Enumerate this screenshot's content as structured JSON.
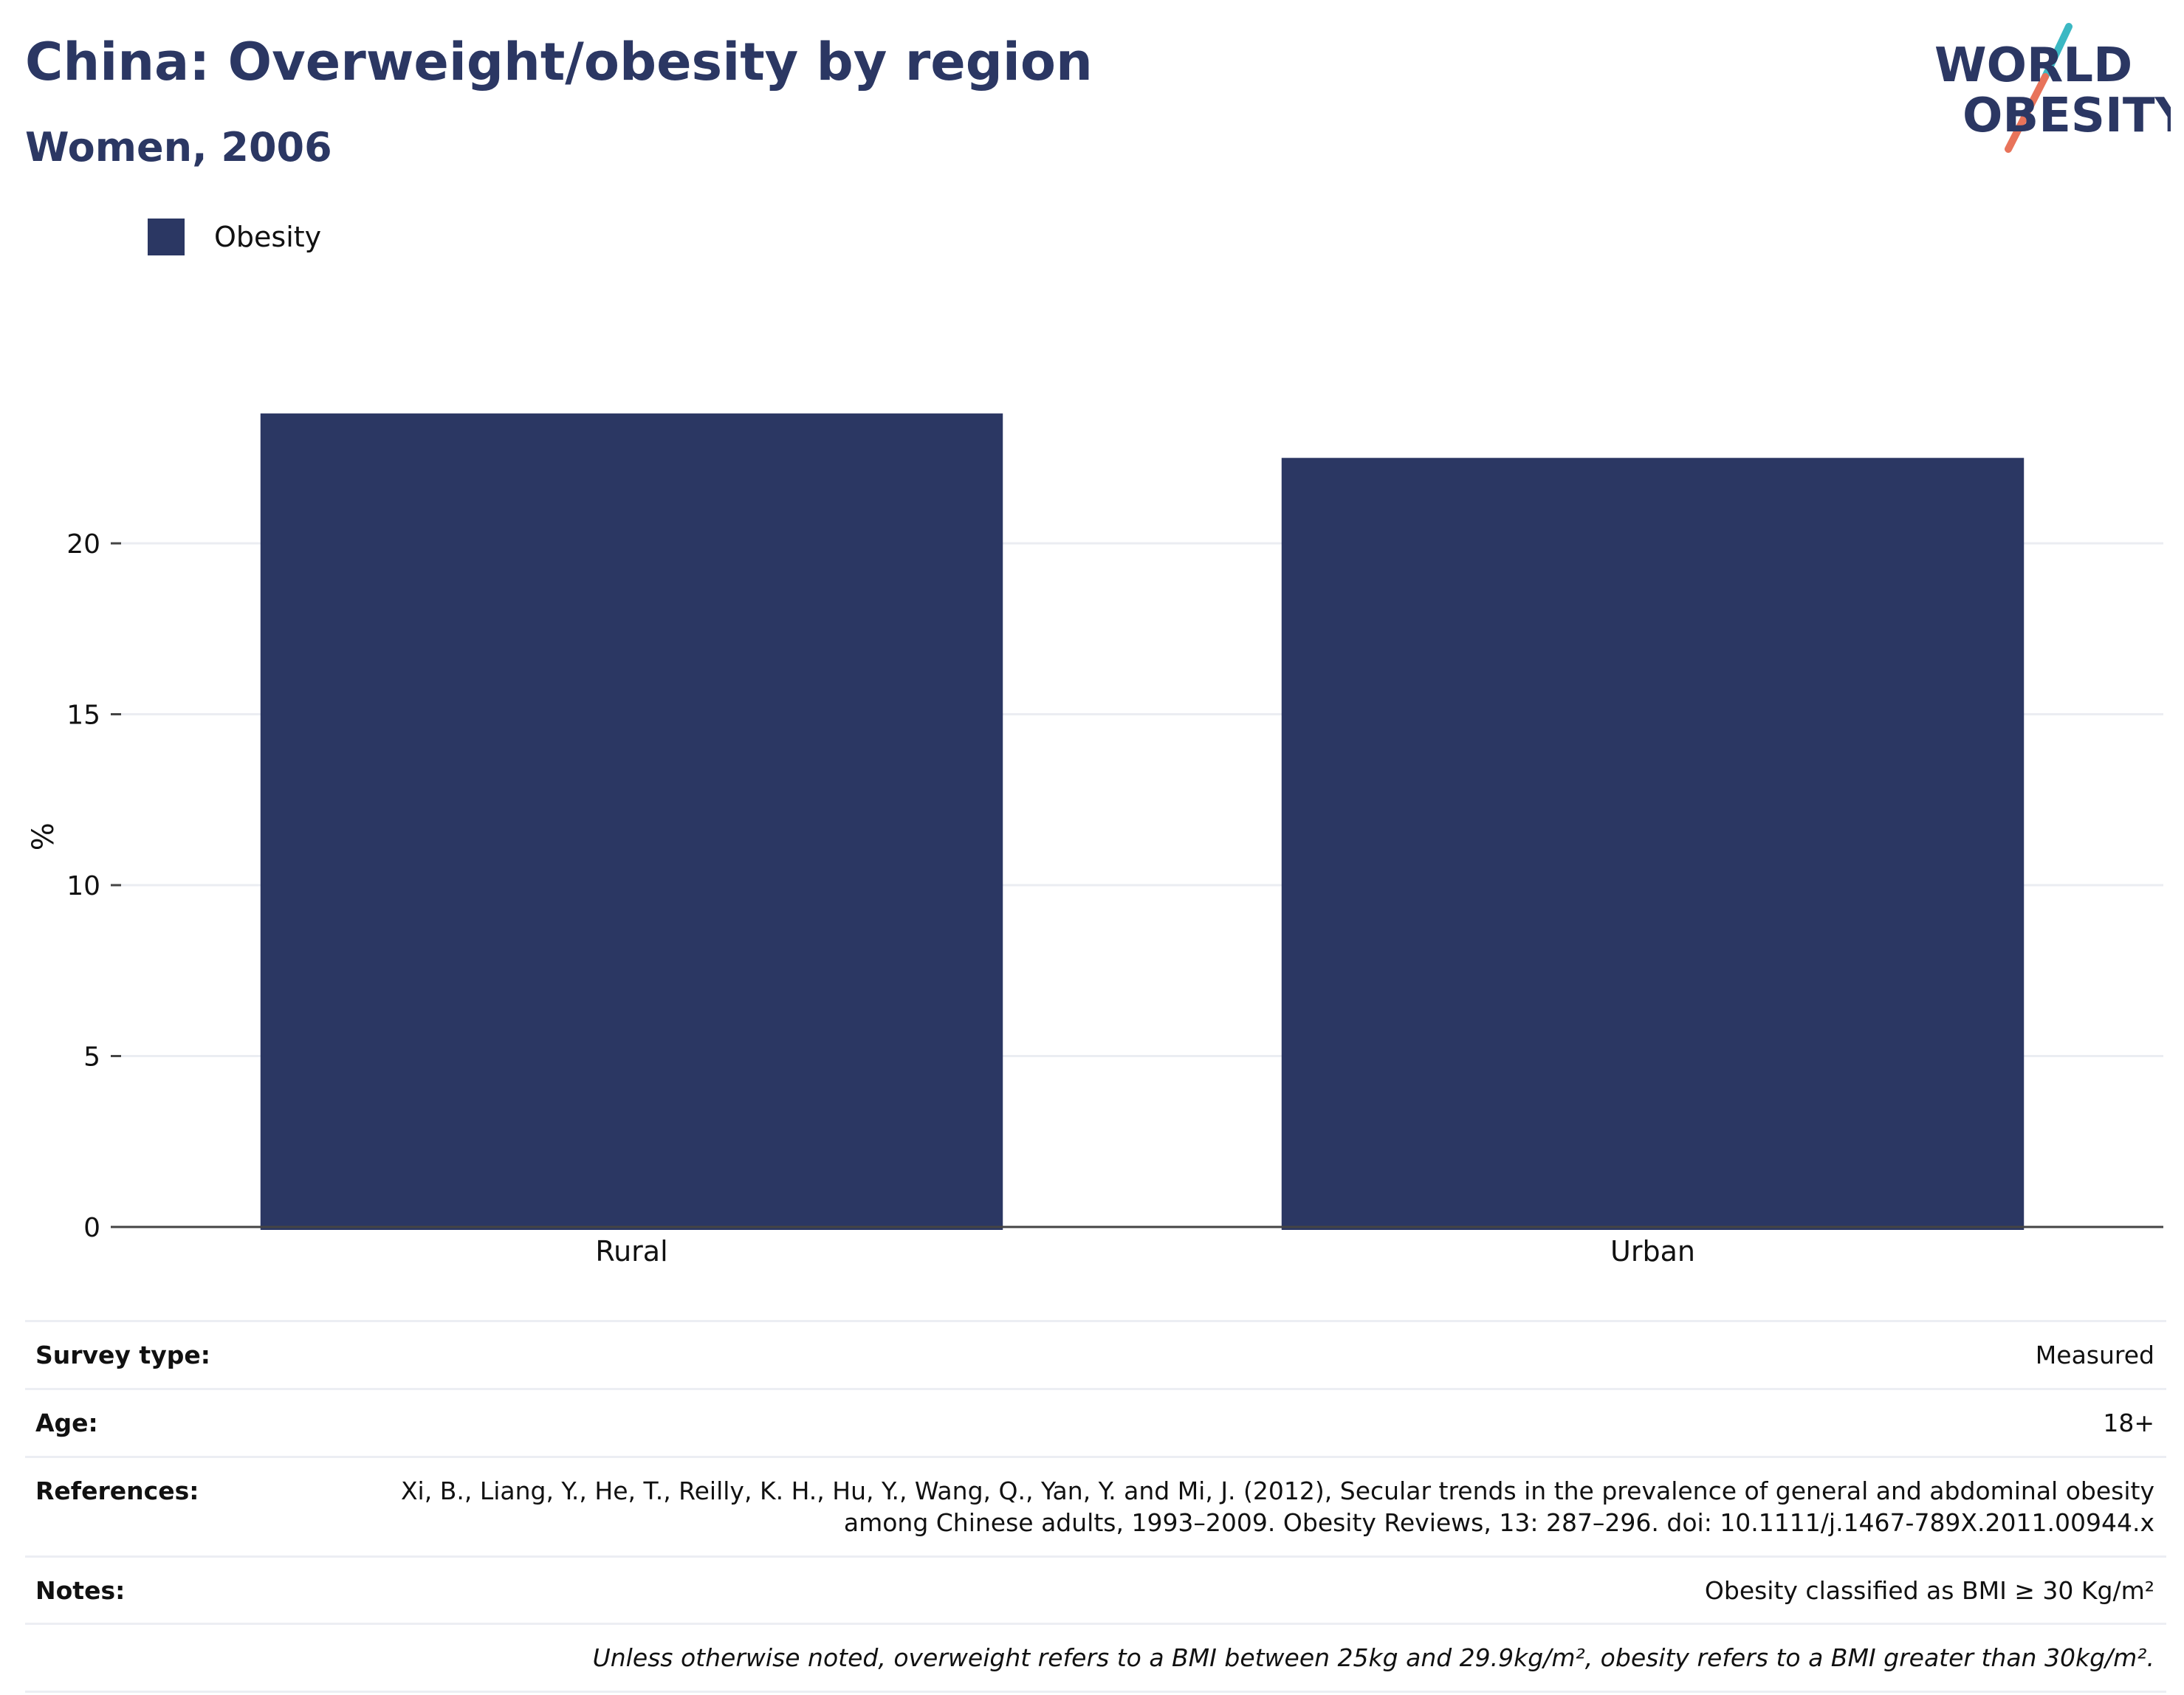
{
  "header": {
    "title": "China: Overweight/obesity by region",
    "subtitle": "Women, 2006"
  },
  "logo": {
    "line1": "WORLD",
    "line2": "OBESITY",
    "colors": {
      "text": "#2b3763",
      "slash_top": "#3bb8c3",
      "slash_bottom": "#e8735a"
    }
  },
  "chart_data": {
    "type": "bar",
    "categories": [
      "Rural",
      "Urban"
    ],
    "series": [
      {
        "name": "Obesity",
        "values": [
          23.8,
          22.5
        ],
        "color": "#2b3763"
      }
    ],
    "ylabel": "%",
    "xlabel": "",
    "ylim": [
      0,
      25
    ],
    "yticks": [
      0,
      5,
      10,
      15,
      20
    ],
    "grid": true,
    "legend": "top-left"
  },
  "meta": {
    "survey_type": {
      "label": "Survey type:",
      "value": "Measured"
    },
    "age": {
      "label": "Age:",
      "value": "18+"
    },
    "references": {
      "label": "References:",
      "value": "Xi, B., Liang, Y., He, T., Reilly, K. H., Hu, Y., Wang, Q., Yan, Y. and Mi, J. (2012), Secular trends in the prevalence of general and abdominal obesity among Chinese adults, 1993–2009. Obesity Reviews, 13: 287–296. doi: 10.1111/j.1467-789X.2011.00944.x"
    },
    "notes": {
      "label": "Notes:",
      "value": "Obesity classified as BMI ≥ 30 Kg/m²"
    },
    "footnote": "Unless otherwise noted, overweight refers to a BMI between 25kg and 29.9kg/m², obesity refers to a BMI greater than 30kg/m²."
  }
}
